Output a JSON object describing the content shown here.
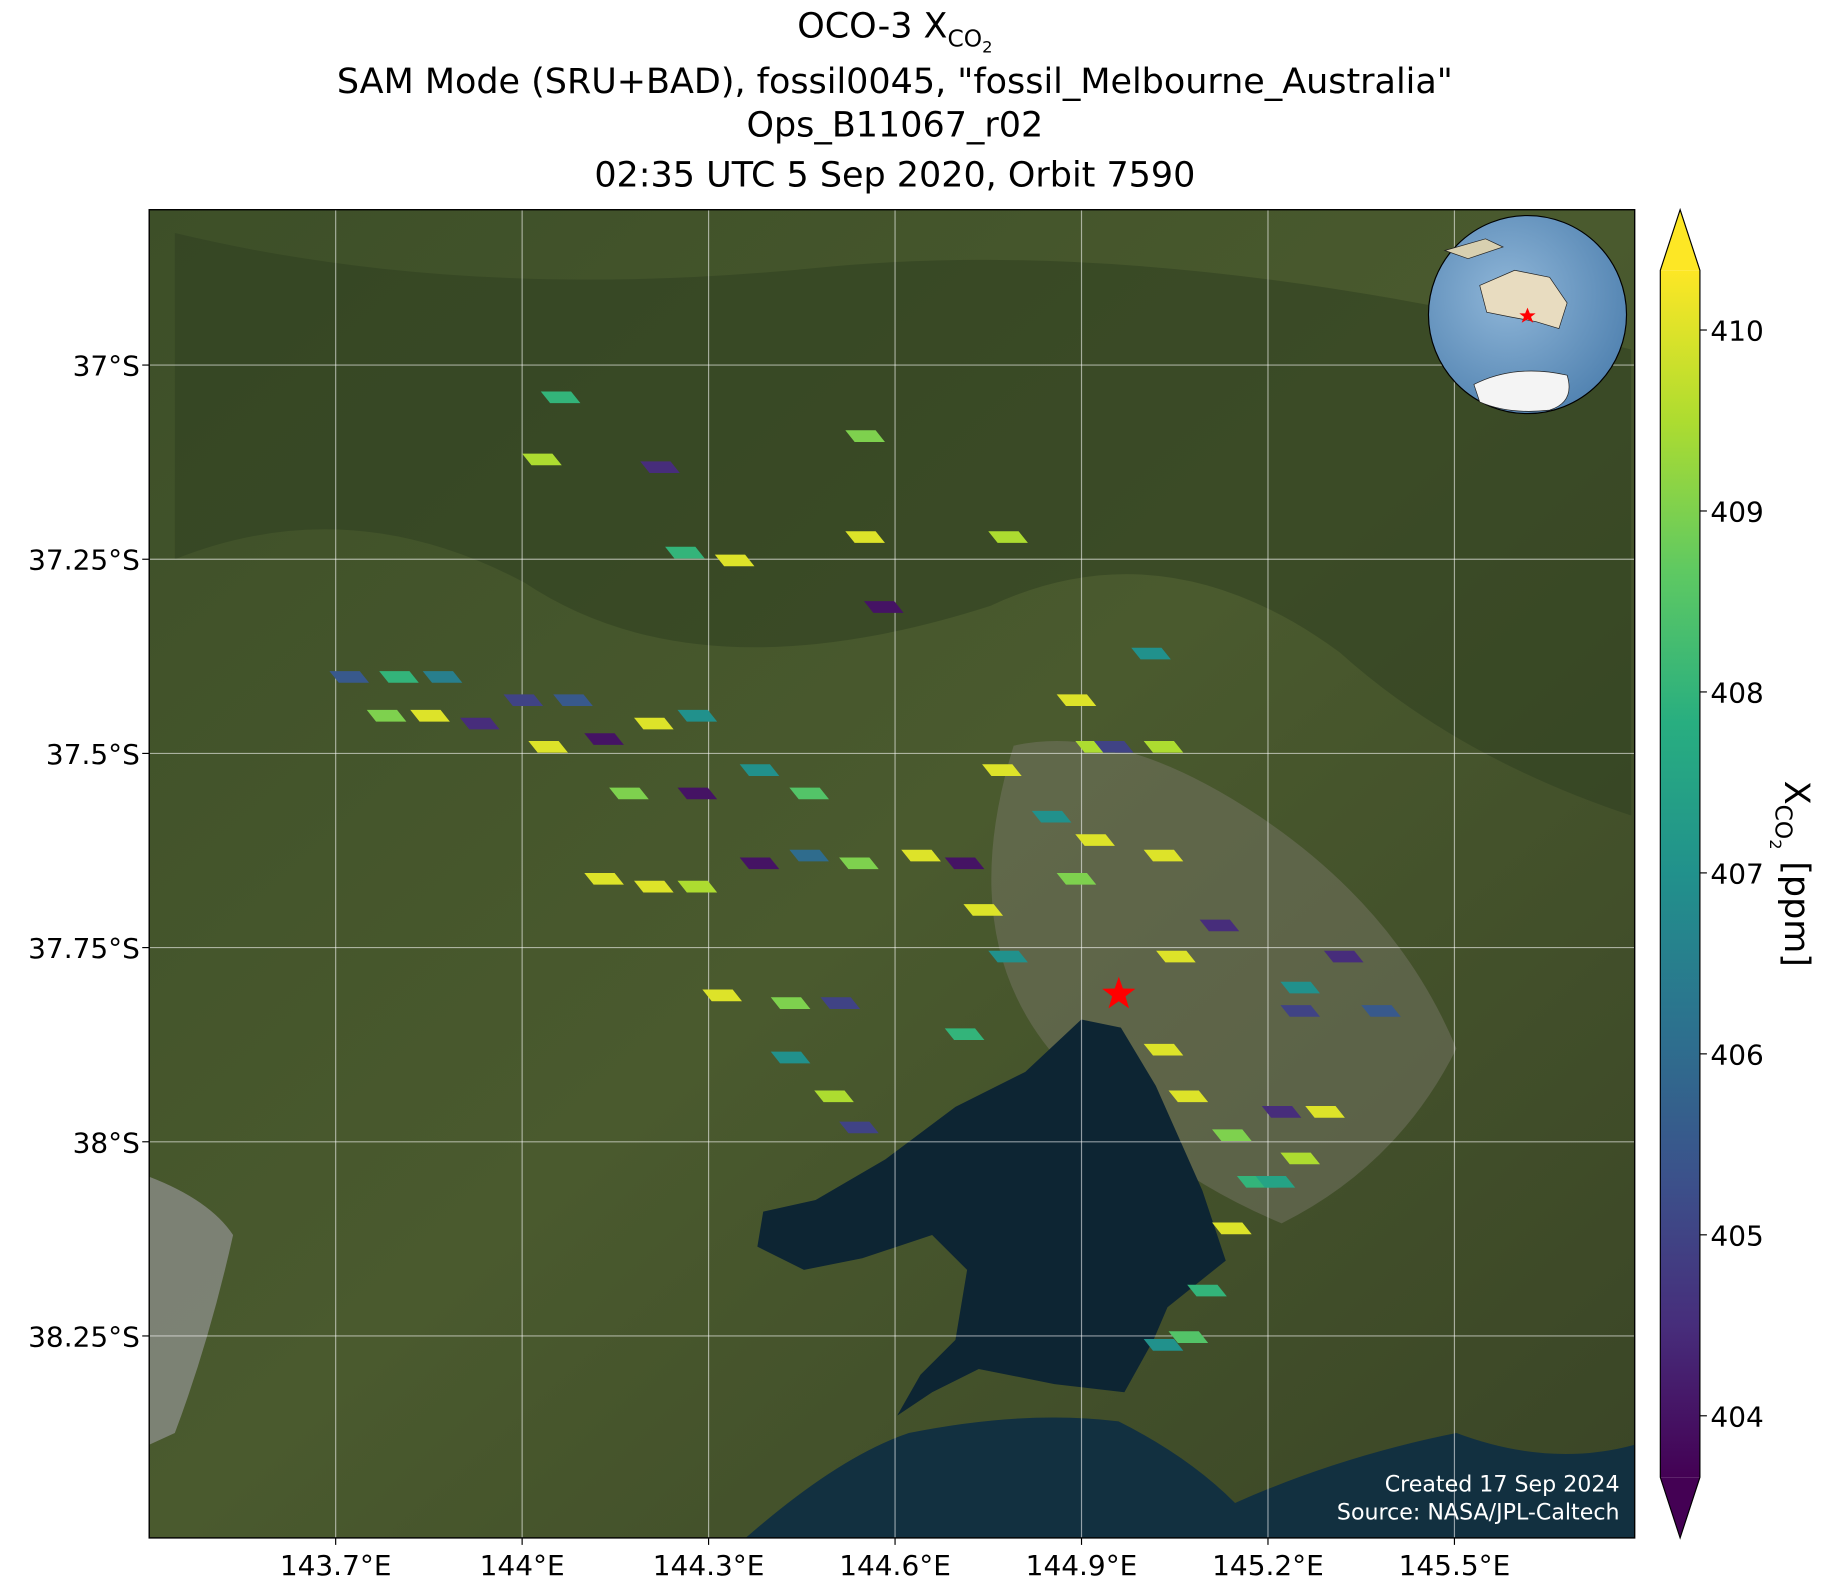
{
  "chart_data": {
    "type": "map",
    "title": {
      "text": "OCO-3 X",
      "subscript": "CO",
      "sub_subscript": "2"
    },
    "subtitle_lines": [
      "SAM Mode (SRU+BAD), fossil0045, \"fossil_Melbourne_Australia\"",
      "Ops_B11067_r02",
      "02:35 UTC 5 Sep 2020, Orbit 7590"
    ],
    "xlim": [
      143.4,
      145.79
    ],
    "ylim": [
      -38.51,
      -36.8
    ],
    "xticks": [
      {
        "value": 143.7,
        "label": "143.7°E"
      },
      {
        "value": 144.0,
        "label": "144°E"
      },
      {
        "value": 144.3,
        "label": "144.3°E"
      },
      {
        "value": 144.6,
        "label": "144.6°E"
      },
      {
        "value": 144.9,
        "label": "144.9°E"
      },
      {
        "value": 145.2,
        "label": "145.2°E"
      },
      {
        "value": 145.5,
        "label": "145.5°E"
      }
    ],
    "yticks": [
      {
        "value": -37.0,
        "label": "37°S"
      },
      {
        "value": -37.25,
        "label": "37.25°S"
      },
      {
        "value": -37.5,
        "label": "37.5°S"
      },
      {
        "value": -37.75,
        "label": "37.75°S"
      },
      {
        "value": -38.0,
        "label": "38°S"
      },
      {
        "value": -38.25,
        "label": "38.25°S"
      }
    ],
    "grid": true,
    "colorbar": {
      "label": {
        "text": "X",
        "subscript": "CO",
        "sub_subscript": "2",
        "unit": "[ppm]"
      },
      "clim": [
        403.66,
        410.33
      ],
      "ticks": [
        404,
        405,
        406,
        407,
        408,
        409,
        410
      ],
      "extend": "both"
    },
    "colormap": [
      "#440154",
      "#472d7b",
      "#3b528b",
      "#2c728e",
      "#21918c",
      "#28ae80",
      "#5ec962",
      "#addc30",
      "#fde725"
    ],
    "target": {
      "lon": 144.96,
      "lat": -37.81,
      "color": "#ff0000"
    },
    "soundings": {
      "lon": [
        143.72,
        143.8,
        143.87,
        143.78,
        143.85,
        143.93,
        144.0,
        144.08,
        144.04,
        144.13,
        144.21,
        144.28,
        144.17,
        144.28,
        144.38,
        144.46,
        144.13,
        144.21,
        144.28,
        144.38,
        144.46,
        144.54,
        144.64,
        144.32,
        144.43,
        144.51,
        144.43,
        144.5,
        144.54,
        144.58,
        144.55,
        144.55,
        144.06,
        144.03,
        144.22,
        144.26,
        144.34,
        144.89,
        144.92,
        144.95,
        144.85,
        144.92,
        144.89,
        144.74,
        144.71,
        144.78,
        144.71,
        145.03,
        145.07,
        145.14,
        145.18,
        145.22,
        145.14,
        145.1,
        145.07,
        145.03,
        145.21,
        145.25,
        145.29,
        145.25,
        145.32,
        145.05,
        145.25,
        145.38,
        145.03,
        145.03,
        145.12,
        144.78,
        144.77,
        145.01
      ],
      "lat": [
        -37.4,
        -37.4,
        -37.4,
        -37.45,
        -37.45,
        -37.46,
        -37.43,
        -37.43,
        -37.49,
        -37.48,
        -37.46,
        -37.45,
        -37.55,
        -37.55,
        -37.52,
        -37.55,
        -37.66,
        -37.67,
        -37.67,
        -37.64,
        -37.63,
        -37.64,
        -37.63,
        -37.81,
        -37.82,
        -37.82,
        -37.89,
        -37.94,
        -37.98,
        -37.31,
        -37.22,
        -37.09,
        -37.04,
        -37.12,
        -37.13,
        -37.24,
        -37.25,
        -37.43,
        -37.49,
        -37.49,
        -37.58,
        -37.61,
        -37.66,
        -37.7,
        -37.64,
        -37.76,
        -37.86,
        -37.88,
        -37.94,
        -37.99,
        -38.05,
        -37.96,
        -38.11,
        -38.19,
        -38.25,
        -38.26,
        -38.05,
        -38.02,
        -37.96,
        -37.83,
        -37.76,
        -37.76,
        -37.8,
        -37.83,
        -37.49,
        -37.63,
        -37.72,
        -37.22,
        -37.52,
        -37.37
      ],
      "values": [
        405.5,
        408,
        406.5,
        409,
        410,
        404.5,
        405,
        405.5,
        410,
        404,
        410,
        407,
        409,
        404,
        407,
        408.5,
        410,
        410,
        409.5,
        404,
        406,
        409,
        410,
        410,
        409,
        405,
        407,
        409.5,
        405,
        404,
        410,
        409,
        408,
        409.5,
        404.5,
        408,
        410,
        410,
        409.5,
        405,
        407,
        410,
        409,
        410,
        404,
        407,
        408,
        410,
        410,
        409,
        408,
        404.5,
        410,
        408,
        408.5,
        407,
        407.5,
        409.5,
        410,
        405,
        404.5,
        410,
        407,
        405.5,
        409.5,
        410,
        404.5,
        409.5,
        410,
        407
      ]
    },
    "annotation_lines": [
      "Created 17 Sep 2024",
      "Source: NASA/JPL-Caltech"
    ]
  }
}
